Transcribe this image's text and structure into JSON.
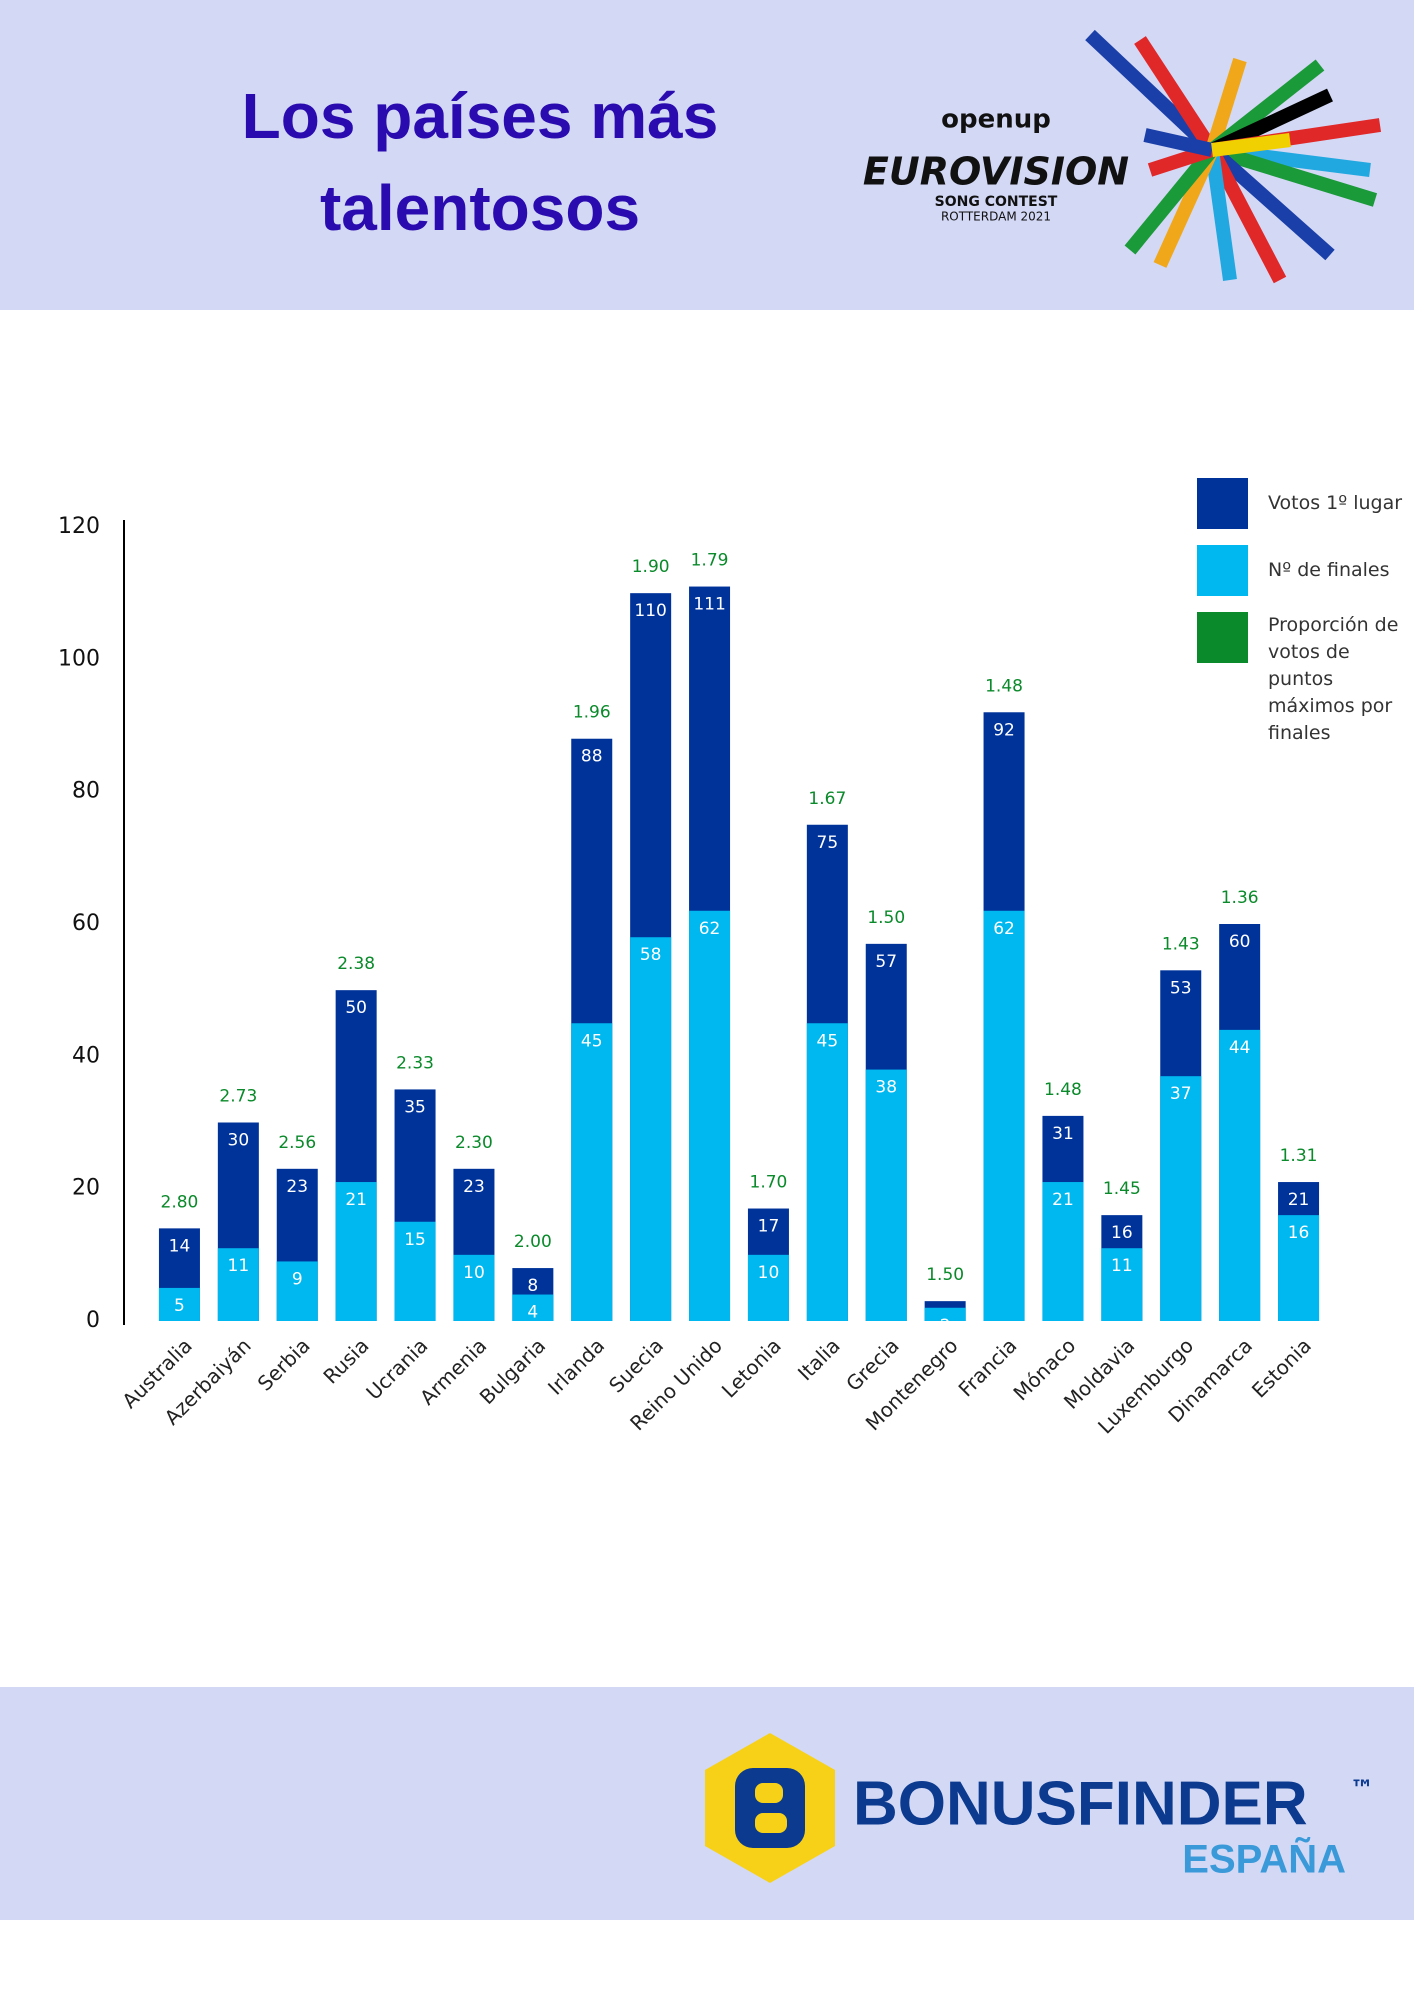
{
  "header": {
    "logo_top": "openup",
    "logo_main": "EUROVISION",
    "logo_sub": "SONG CONTEST",
    "logo_place": "ROTTERDAM 2021"
  },
  "footer": {
    "brand": "BONUSFINDER",
    "trademark": "™",
    "country": "ESPAÑA"
  },
  "chart_data": {
    "type": "bar",
    "title": "Los países más talentosos",
    "categories": [
      "Australia",
      "Azerbaiyán",
      "Serbia",
      "Rusia",
      "Ucrania",
      "Armenia",
      "Bulgaria",
      "Irlanda",
      "Suecia",
      "Reino Unido",
      "Letonia",
      "Italia",
      "Grecia",
      "Montenegro",
      "Francia",
      "Mónaco",
      "Moldavia",
      "Luxemburgo",
      "Dinamarca",
      "Estonia"
    ],
    "series": [
      {
        "name": "Votos 1º lugar",
        "color": "#00339a",
        "values": [
          14,
          30,
          23,
          50,
          35,
          23,
          8,
          88,
          110,
          111,
          17,
          75,
          57,
          3,
          92,
          31,
          16,
          53,
          60,
          21
        ]
      },
      {
        "name": "Nº de finales",
        "color": "#00b8f0",
        "values": [
          5,
          11,
          9,
          21,
          15,
          10,
          4,
          45,
          58,
          62,
          10,
          45,
          38,
          2,
          62,
          21,
          11,
          37,
          44,
          16
        ]
      },
      {
        "name": "Proporción de votos de puntos máximos por finales",
        "color": "#0a8a2a",
        "values": [
          2.8,
          2.73,
          2.56,
          2.38,
          2.33,
          2.3,
          2,
          1.96,
          1.9,
          1.79,
          1.7,
          1.67,
          1.5,
          1.5,
          1.48,
          1.48,
          1.45,
          1.43,
          1.36,
          1.31
        ],
        "value_labels": [
          "2.80",
          "2.73",
          "2.56",
          "2.38",
          "2.33",
          "2.30",
          "2.00",
          "1.96",
          "1.90",
          "1.79",
          "1.70",
          "1.67",
          "1.50",
          "1.50",
          "1.48",
          "1.48",
          "1.45",
          "1.43",
          "1.36",
          "1.31"
        ]
      }
    ],
    "ylim": [
      0,
      120
    ],
    "yticks": [
      0,
      20,
      40,
      60,
      80,
      100,
      120
    ],
    "grid": false
  }
}
